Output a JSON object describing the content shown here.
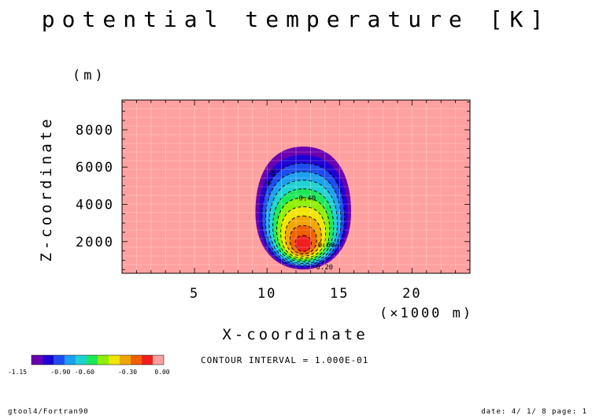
{
  "title": "potential temperature [K]",
  "z_unit": "(m)",
  "x_unit": "(×1000 m)",
  "interval_text": "CONTOUR INTERVAL = 1.000E-01",
  "footer": {
    "left": "gtool4/Fortran90",
    "right": "date: 4/ 1/ 8 page: 1"
  },
  "chart_data": {
    "type": "heatmap",
    "title": "potential temperature [K]",
    "xlabel": "X-coordinate",
    "ylabel": "Z-coordinate",
    "xlim": [
      0,
      24
    ],
    "ylim": [
      300,
      9600
    ],
    "x_ticks": [
      "5",
      "10",
      "15",
      "20"
    ],
    "y_ticks": [
      "2000",
      "4000",
      "6000",
      "8000"
    ],
    "grid": true,
    "field": {
      "center_x": 12.5,
      "center_z": 1700,
      "minimum": -1.15,
      "outer_top_z": 7100,
      "outer_bottom_z": 500,
      "outer_half_width_x": 3.3
    },
    "contour_labels": [
      "-0.20",
      "-0.40",
      "-0.60",
      "-0.20"
    ],
    "colorbar": {
      "colors": [
        "#6a00b0",
        "#1e00d4",
        "#1e4cf0",
        "#1ea0f0",
        "#21d2d2",
        "#1ee85a",
        "#8ef000",
        "#f0e600",
        "#f0a600",
        "#f06000",
        "#f02020",
        "#ffa0a0"
      ],
      "labels": [
        "-1.15",
        "-0.90",
        "-0.60",
        "-0.30",
        "0.00"
      ],
      "overlap_label": "-0.90 -0.60"
    },
    "contour_interval": "1.000E-01"
  }
}
